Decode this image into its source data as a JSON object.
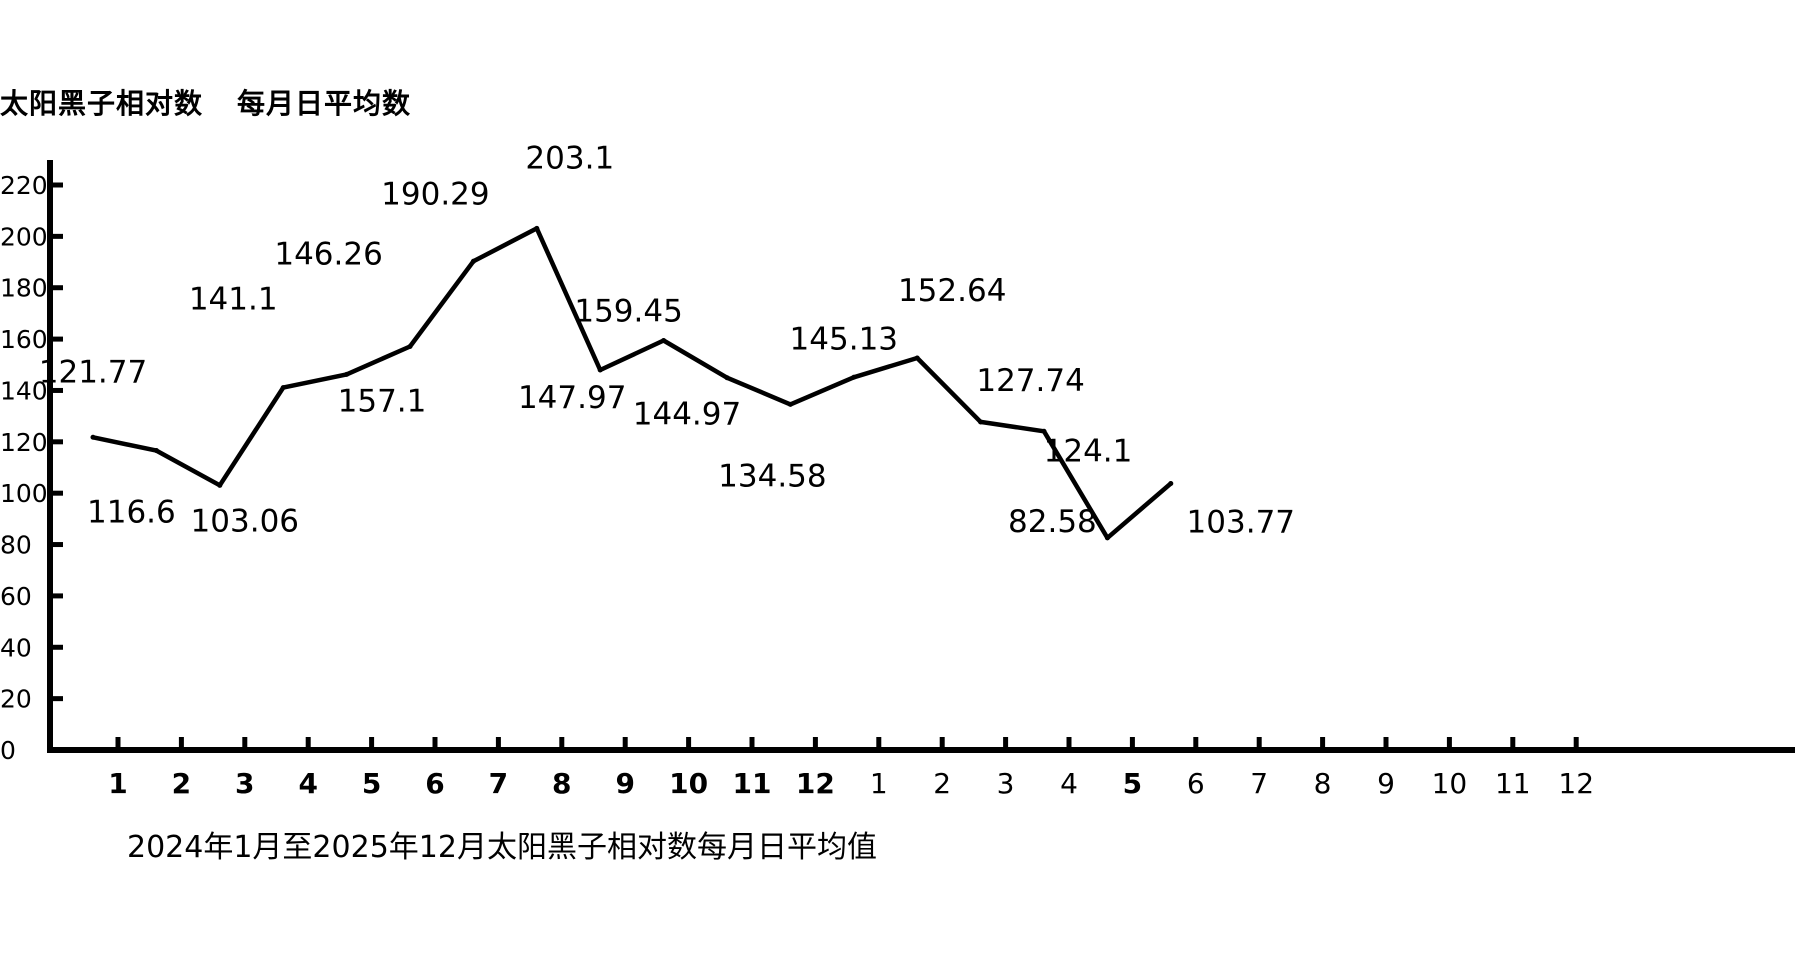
{
  "chart_data": {
    "type": "line",
    "title": "太阳黑子相对数",
    "subtitle": "每月日平均数",
    "caption": "2024年1月至2025年12月太阳黑子相对数每月日平均值",
    "ylim": [
      0,
      220
    ],
    "y_ticks": [
      0,
      20,
      40,
      60,
      80,
      100,
      120,
      140,
      160,
      180,
      200,
      220
    ],
    "x_tick_labels": [
      "1",
      "2",
      "3",
      "4",
      "5",
      "6",
      "7",
      "8",
      "9",
      "10",
      "11",
      "12",
      "1",
      "2",
      "3",
      "4",
      "5",
      "6",
      "7",
      "8",
      "9",
      "10",
      "11",
      "12"
    ],
    "x": [
      "2024-01",
      "2024-02",
      "2024-03",
      "2024-04",
      "2024-05",
      "2024-06",
      "2024-07",
      "2024-08",
      "2024-09",
      "2024-10",
      "2024-11",
      "2024-12",
      "2025-01",
      "2025-02",
      "2025-03",
      "2025-04",
      "2025-05",
      "2025-06"
    ],
    "values": [
      121.77,
      116.6,
      103.06,
      141.1,
      146.26,
      157.1,
      190.29,
      203.1,
      147.97,
      159.45,
      144.97,
      134.58,
      145.13,
      152.64,
      127.74,
      124.1,
      82.58,
      103.77
    ],
    "data_labels": [
      "121.77",
      "116.6",
      "103.06",
      "141.1",
      "146.26",
      "157.1",
      "190.29",
      "203.1",
      "147.97",
      "159.45",
      "144.97",
      "134.58",
      "145.13",
      "152.64",
      "127.74",
      "124.1",
      "82.58",
      "103.77"
    ],
    "grid": false,
    "legend": "none"
  }
}
